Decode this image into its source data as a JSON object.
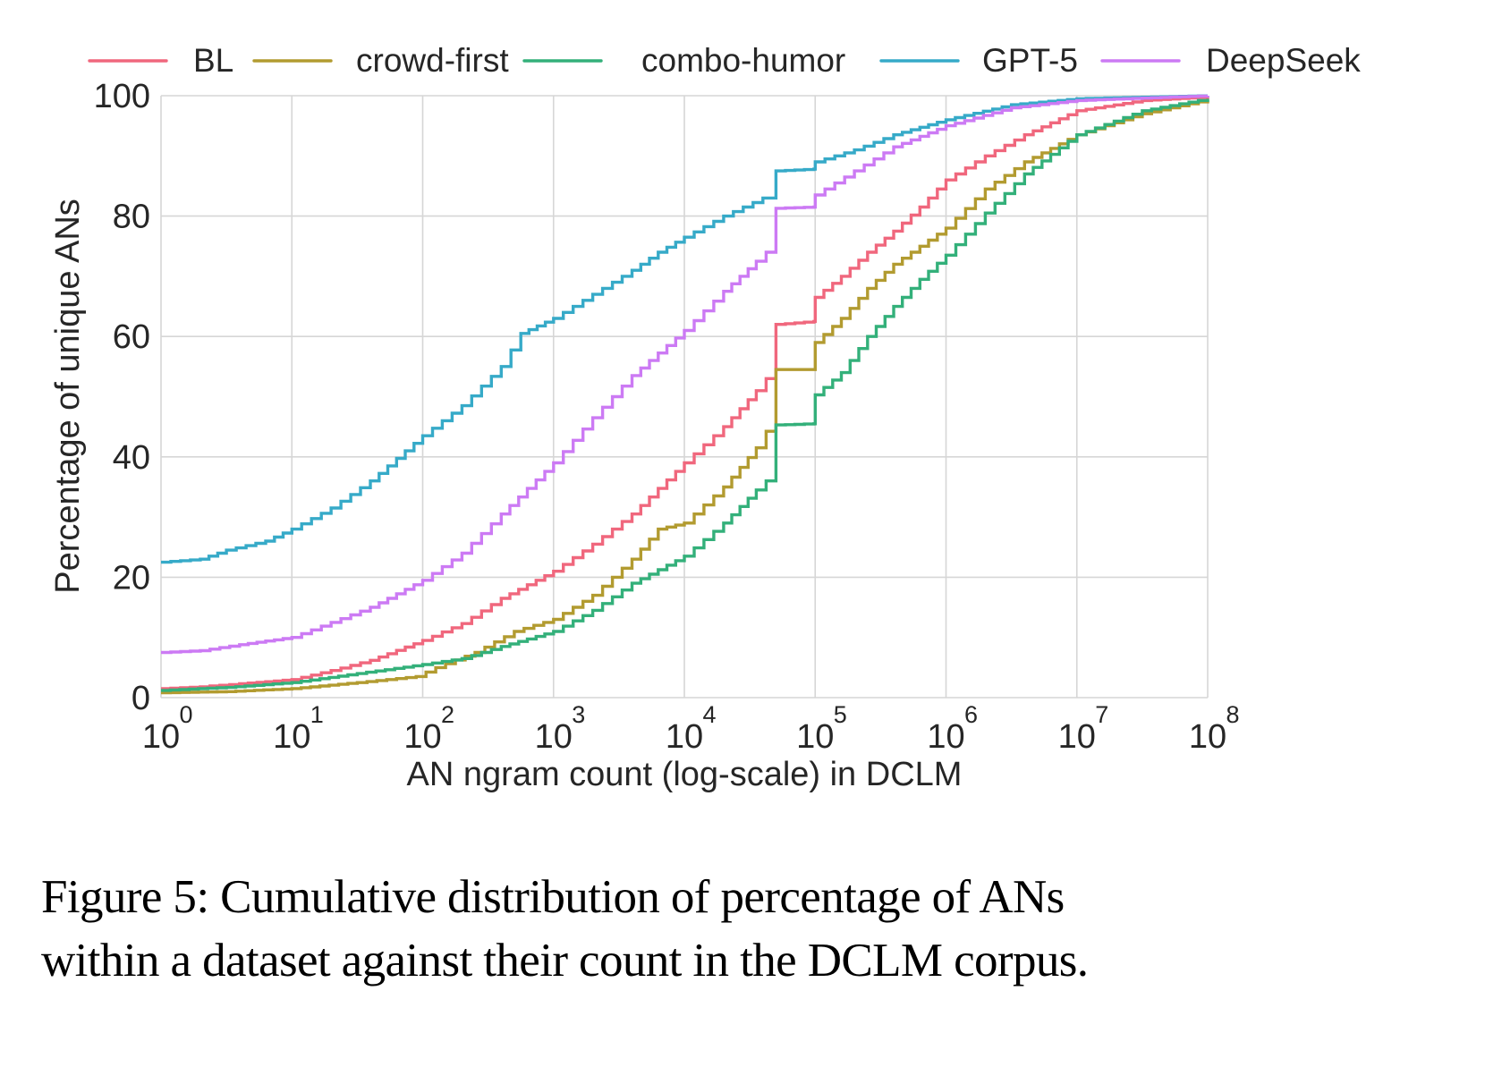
{
  "chart_data": {
    "type": "line",
    "title": "",
    "xlabel": "AN ngram count (log-scale) in DCLM",
    "ylabel": "Percentage of unique ANs",
    "xscale": "log",
    "xlim_log10": [
      0,
      8
    ],
    "ylim": [
      0,
      100
    ],
    "grid": true,
    "legend_position": "top",
    "x_ticks": [
      {
        "base": "10",
        "exp": "0"
      },
      {
        "base": "10",
        "exp": "1"
      },
      {
        "base": "10",
        "exp": "2"
      },
      {
        "base": "10",
        "exp": "3"
      },
      {
        "base": "10",
        "exp": "4"
      },
      {
        "base": "10",
        "exp": "5"
      },
      {
        "base": "10",
        "exp": "6"
      },
      {
        "base": "10",
        "exp": "7"
      },
      {
        "base": "10",
        "exp": "8"
      }
    ],
    "y_ticks": [
      "0",
      "20",
      "40",
      "60",
      "80",
      "100"
    ],
    "series": [
      {
        "name": "BL",
        "color": "#f0677d",
        "points_log10x": [
          [
            0,
            1.5
          ],
          [
            0.3,
            1.8
          ],
          [
            0.6,
            2.3
          ],
          [
            1,
            3.0
          ],
          [
            1.3,
            4.5
          ],
          [
            1.6,
            6.2
          ],
          [
            2,
            9.5
          ],
          [
            2.3,
            12.3
          ],
          [
            2.6,
            16.5
          ],
          [
            3,
            21
          ],
          [
            3.3,
            25.5
          ],
          [
            3.6,
            30.5
          ],
          [
            4,
            39
          ],
          [
            4.3,
            45
          ],
          [
            4.55,
            51
          ],
          [
            4.7,
            55
          ],
          [
            4.7,
            62
          ],
          [
            4.99,
            62.5
          ],
          [
            5,
            66.5
          ],
          [
            5.2,
            70
          ],
          [
            5.4,
            74
          ],
          [
            5.6,
            77.5
          ],
          [
            5.8,
            81.5
          ],
          [
            6,
            86
          ],
          [
            6.3,
            90
          ],
          [
            6.6,
            93.5
          ],
          [
            7,
            97.5
          ],
          [
            7.5,
            99.2
          ],
          [
            8,
            99.8
          ]
        ]
      },
      {
        "name": "crowd-first",
        "color": "#b29b30",
        "points_log10x": [
          [
            0,
            0.8
          ],
          [
            0.5,
            1.0
          ],
          [
            1,
            1.5
          ],
          [
            1.5,
            2.5
          ],
          [
            1.95,
            3.5
          ],
          [
            2.1,
            5
          ],
          [
            2.4,
            7.5
          ],
          [
            2.7,
            11
          ],
          [
            3,
            13
          ],
          [
            3.3,
            17
          ],
          [
            3.6,
            23
          ],
          [
            3.8,
            28
          ],
          [
            4,
            29
          ],
          [
            4.3,
            35
          ],
          [
            4.55,
            41.5
          ],
          [
            4.7,
            47
          ],
          [
            4.7,
            54.5
          ],
          [
            4.99,
            54.5
          ],
          [
            5,
            59
          ],
          [
            5.2,
            63
          ],
          [
            5.4,
            68
          ],
          [
            5.6,
            72
          ],
          [
            5.8,
            75
          ],
          [
            6,
            78
          ],
          [
            6.3,
            84.5
          ],
          [
            6.6,
            89
          ],
          [
            7,
            93.5
          ],
          [
            7.5,
            97
          ],
          [
            8,
            99.3
          ]
        ]
      },
      {
        "name": "combo-humor",
        "color": "#33b07a",
        "points_log10x": [
          [
            0,
            1.2
          ],
          [
            0.5,
            1.7
          ],
          [
            1,
            2.5
          ],
          [
            1.5,
            4
          ],
          [
            2,
            5.5
          ],
          [
            2.3,
            6.5
          ],
          [
            2.6,
            8.5
          ],
          [
            3,
            11
          ],
          [
            3.3,
            14.5
          ],
          [
            3.6,
            19
          ],
          [
            4,
            23.5
          ],
          [
            4.3,
            29
          ],
          [
            4.55,
            34.5
          ],
          [
            4.7,
            37.5
          ],
          [
            4.7,
            45.3
          ],
          [
            4.99,
            45.5
          ],
          [
            5,
            50.3
          ],
          [
            5.2,
            54
          ],
          [
            5.4,
            60
          ],
          [
            5.6,
            65
          ],
          [
            5.8,
            69.5
          ],
          [
            6,
            73.5
          ],
          [
            6.3,
            80.5
          ],
          [
            6.6,
            87
          ],
          [
            7,
            93.5
          ],
          [
            7.5,
            97.5
          ],
          [
            8,
            99.5
          ]
        ]
      },
      {
        "name": "GPT-5",
        "color": "#36aac8",
        "points_log10x": [
          [
            0,
            22.5
          ],
          [
            0.3,
            23
          ],
          [
            0.5,
            24.5
          ],
          [
            0.8,
            26
          ],
          [
            1,
            28
          ],
          [
            1.3,
            31.5
          ],
          [
            1.6,
            36
          ],
          [
            2,
            43.5
          ],
          [
            2.3,
            48.5
          ],
          [
            2.6,
            55
          ],
          [
            2.75,
            60.5
          ],
          [
            3,
            63
          ],
          [
            3.3,
            67
          ],
          [
            3.6,
            71
          ],
          [
            3.8,
            74
          ],
          [
            4,
            76.5
          ],
          [
            4.3,
            80
          ],
          [
            4.6,
            83
          ],
          [
            4.7,
            84
          ],
          [
            4.7,
            87.5
          ],
          [
            4.99,
            87.8
          ],
          [
            5,
            89
          ],
          [
            5.3,
            91
          ],
          [
            5.6,
            93.5
          ],
          [
            6,
            96
          ],
          [
            6.5,
            98.5
          ],
          [
            7,
            99.5
          ],
          [
            8,
            100
          ]
        ]
      },
      {
        "name": "DeepSeek",
        "color": "#cc7af4",
        "points_log10x": [
          [
            0,
            7.5
          ],
          [
            0.3,
            7.8
          ],
          [
            0.6,
            8.8
          ],
          [
            1,
            10
          ],
          [
            1.3,
            12.5
          ],
          [
            1.6,
            15
          ],
          [
            2,
            19.5
          ],
          [
            2.3,
            24
          ],
          [
            2.6,
            30.5
          ],
          [
            3,
            39
          ],
          [
            3.3,
            46.5
          ],
          [
            3.6,
            53.5
          ],
          [
            4,
            61
          ],
          [
            4.3,
            67.5
          ],
          [
            4.55,
            72.5
          ],
          [
            4.7,
            75.5
          ],
          [
            4.7,
            81.3
          ],
          [
            4.99,
            81.5
          ],
          [
            5,
            83.5
          ],
          [
            5.3,
            87.5
          ],
          [
            5.6,
            91.5
          ],
          [
            6,
            95
          ],
          [
            6.5,
            98
          ],
          [
            7,
            99.2
          ],
          [
            8,
            100
          ]
        ]
      }
    ]
  },
  "caption": {
    "line1": "Figure 5: Cumulative distribution of percentage of ANs",
    "line2": "within a dataset against their count in the DCLM corpus."
  }
}
